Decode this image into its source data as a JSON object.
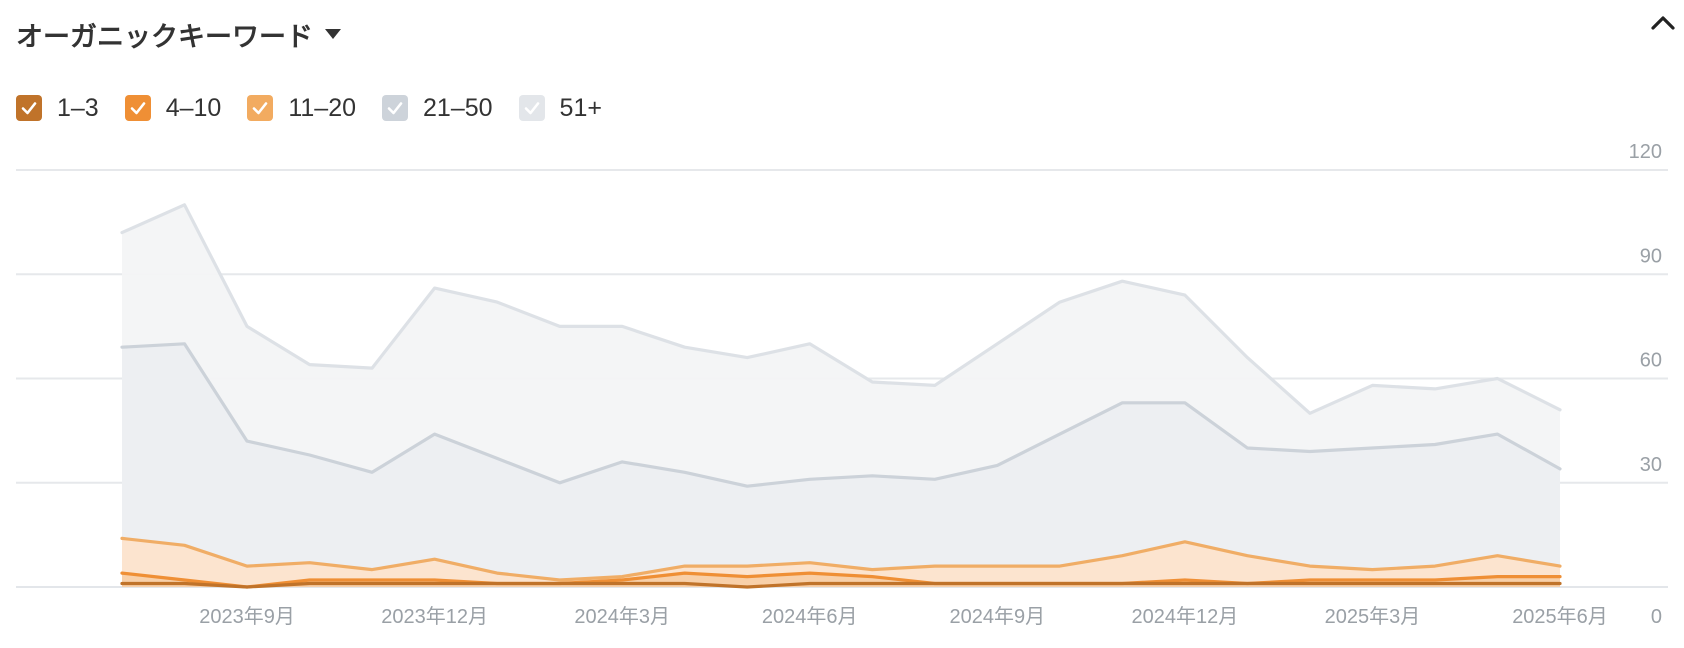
{
  "header": {
    "title": "オーガニックキーワード"
  },
  "legend": {
    "items": [
      {
        "label": "1–3",
        "color": "#c0732a"
      },
      {
        "label": "4–10",
        "color": "#ef8f35"
      },
      {
        "label": "11–20",
        "color": "#f2ab60"
      },
      {
        "label": "21–50",
        "color": "#cdd3da"
      },
      {
        "label": "51+",
        "color": "#e3e6ea"
      }
    ]
  },
  "chart_data": {
    "type": "area",
    "stacked": false,
    "y_ticks": [
      0,
      30,
      60,
      90,
      120
    ],
    "x_ticks": [
      {
        "label": "2023年9月",
        "index": 2
      },
      {
        "label": "2023年12月",
        "index": 5
      },
      {
        "label": "2024年3月",
        "index": 8
      },
      {
        "label": "2024年6月",
        "index": 11
      },
      {
        "label": "2024年9月",
        "index": 14
      },
      {
        "label": "2024年12月",
        "index": 17
      },
      {
        "label": "2025年3月",
        "index": 20
      },
      {
        "label": "2025年6月",
        "index": 23
      }
    ],
    "x_count": 24,
    "ylim": [
      0,
      120
    ],
    "grid": true,
    "series": [
      {
        "name": "51+",
        "color": "#dde1e6",
        "fill": "#f3f4f6",
        "values": [
          102,
          110,
          75,
          64,
          63,
          86,
          82,
          75,
          75,
          69,
          66,
          70,
          59,
          58,
          70,
          82,
          88,
          84,
          66,
          50,
          58,
          57,
          60,
          51
        ]
      },
      {
        "name": "21–50",
        "color": "#ccd2d9",
        "fill": "#eceef1",
        "values": [
          69,
          70,
          42,
          38,
          33,
          44,
          37,
          30,
          36,
          33,
          29,
          31,
          32,
          31,
          35,
          44,
          53,
          53,
          40,
          39,
          40,
          41,
          44,
          34
        ]
      },
      {
        "name": "11–20",
        "color": "#f0ad66",
        "fill": "#fde3cc",
        "values": [
          14,
          12,
          6,
          7,
          5,
          8,
          4,
          2,
          3,
          6,
          6,
          7,
          5,
          6,
          6,
          6,
          9,
          13,
          9,
          6,
          5,
          6,
          9,
          6
        ]
      },
      {
        "name": "4–10",
        "color": "#ef8f35",
        "fill": "#f8cfa6",
        "values": [
          4,
          2,
          0,
          2,
          2,
          2,
          1,
          1,
          2,
          4,
          3,
          4,
          3,
          1,
          1,
          1,
          1,
          2,
          1,
          2,
          2,
          2,
          3,
          3
        ]
      },
      {
        "name": "1–3",
        "color": "#c0732a",
        "fill": "none",
        "values": [
          1,
          1,
          0,
          1,
          1,
          1,
          1,
          1,
          1,
          1,
          0,
          1,
          1,
          1,
          1,
          1,
          1,
          1,
          1,
          1,
          1,
          1,
          1,
          1
        ]
      }
    ]
  }
}
